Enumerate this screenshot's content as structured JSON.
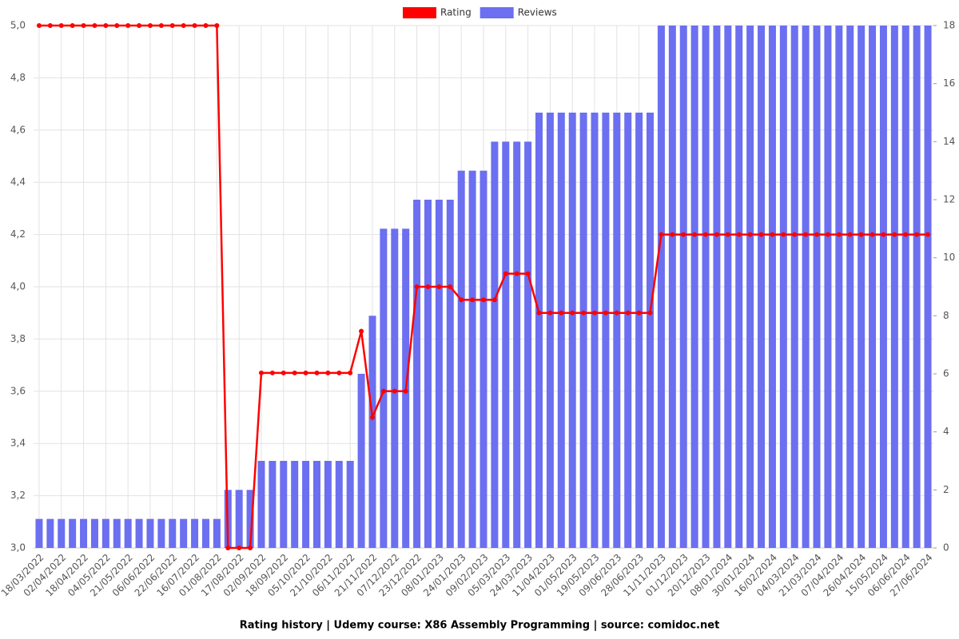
{
  "chart_data": {
    "type": "combo",
    "title": "Rating history | Udemy course: X86 Assembly Programming | source: comidoc.net",
    "categories": [
      "18/03/2022",
      null,
      "02/04/2022",
      null,
      "18/04/2022",
      null,
      "04/05/2022",
      null,
      "21/05/2022",
      null,
      "06/06/2022",
      null,
      "22/06/2022",
      null,
      "16/07/2022",
      null,
      "01/08/2022",
      null,
      "17/08/2022",
      null,
      "02/09/2022",
      null,
      "18/09/2022",
      null,
      "05/10/2022",
      null,
      "21/10/2022",
      null,
      "06/11/2022",
      null,
      "21/11/2022",
      null,
      "07/12/2022",
      null,
      "23/12/2022",
      null,
      "08/01/2023",
      null,
      "24/01/2023",
      null,
      "09/02/2023",
      null,
      "05/03/2023",
      null,
      "24/03/2023",
      null,
      "11/04/2023",
      null,
      "01/05/2023",
      null,
      "19/05/2023",
      null,
      "09/06/2023",
      null,
      "28/06/2023",
      null,
      "11/11/2023",
      null,
      "01/12/2023",
      null,
      "20/12/2023",
      null,
      "08/01/2024",
      null,
      "30/01/2024",
      null,
      "16/02/2024",
      null,
      "04/03/2024",
      null,
      "21/03/2024",
      null,
      "07/04/2024",
      null,
      "26/04/2024",
      null,
      "15/05/2024",
      null,
      "06/06/2024",
      null,
      "27/06/2024"
    ],
    "series": [
      {
        "name": "Rating",
        "type": "line",
        "axis": "y",
        "color": "#ff0000",
        "values": [
          5,
          5,
          5,
          5,
          5,
          5,
          5,
          5,
          5,
          5,
          5,
          5,
          5,
          5,
          5,
          5,
          5,
          3,
          3,
          3,
          3.67,
          3.67,
          3.67,
          3.67,
          3.67,
          3.67,
          3.67,
          3.67,
          3.67,
          3.83,
          3.5,
          3.6,
          3.6,
          3.6,
          4,
          4,
          4,
          4,
          3.95,
          3.95,
          3.95,
          3.95,
          4.05,
          4.05,
          4.05,
          3.9,
          3.9,
          3.9,
          3.9,
          3.9,
          3.9,
          3.9,
          3.9,
          3.9,
          3.9,
          3.9,
          4.2,
          4.2,
          4.2,
          4.2,
          4.2,
          4.2,
          4.2,
          4.2,
          4.2,
          4.2,
          4.2,
          4.2,
          4.2,
          4.2,
          4.2,
          4.2,
          4.2,
          4.2,
          4.2,
          4.2,
          4.2,
          4.2,
          4.2,
          4.2,
          4.2
        ]
      },
      {
        "name": "Reviews",
        "type": "bar",
        "axis": "y2",
        "color": "#6b6ff0",
        "values": [
          1,
          1,
          1,
          1,
          1,
          1,
          1,
          1,
          1,
          1,
          1,
          1,
          1,
          1,
          1,
          1,
          1,
          2,
          2,
          2,
          3,
          3,
          3,
          3,
          3,
          3,
          3,
          3,
          3,
          6,
          8,
          11,
          11,
          11,
          12,
          12,
          12,
          12,
          13,
          13,
          13,
          14,
          14,
          14,
          14,
          15,
          15,
          15,
          15,
          15,
          15,
          15,
          15,
          15,
          15,
          15,
          18,
          18,
          18,
          18,
          18,
          18,
          18,
          18,
          18,
          18,
          18,
          18,
          18,
          18,
          18,
          18,
          18,
          18,
          18,
          18,
          18,
          18,
          18,
          18,
          18
        ]
      }
    ],
    "ylim": [
      3,
      5
    ],
    "yticks": [
      {
        "value": 3,
        "label": "3,0"
      },
      {
        "value": 3.2,
        "label": "3,2"
      },
      {
        "value": 3.4,
        "label": "3,4"
      },
      {
        "value": 3.6,
        "label": "3,6"
      },
      {
        "value": 3.8,
        "label": "3,8"
      },
      {
        "value": 4,
        "label": "4,0"
      },
      {
        "value": 4.2,
        "label": "4,2"
      },
      {
        "value": 4.4,
        "label": "4,4"
      },
      {
        "value": 4.6,
        "label": "4,6"
      },
      {
        "value": 4.8,
        "label": "4,8"
      },
      {
        "value": 5,
        "label": "5,0"
      }
    ],
    "y2lim": [
      0,
      18
    ],
    "y2ticks": [
      0,
      2,
      4,
      6,
      8,
      10,
      12,
      14,
      16,
      18
    ],
    "grid": true
  }
}
